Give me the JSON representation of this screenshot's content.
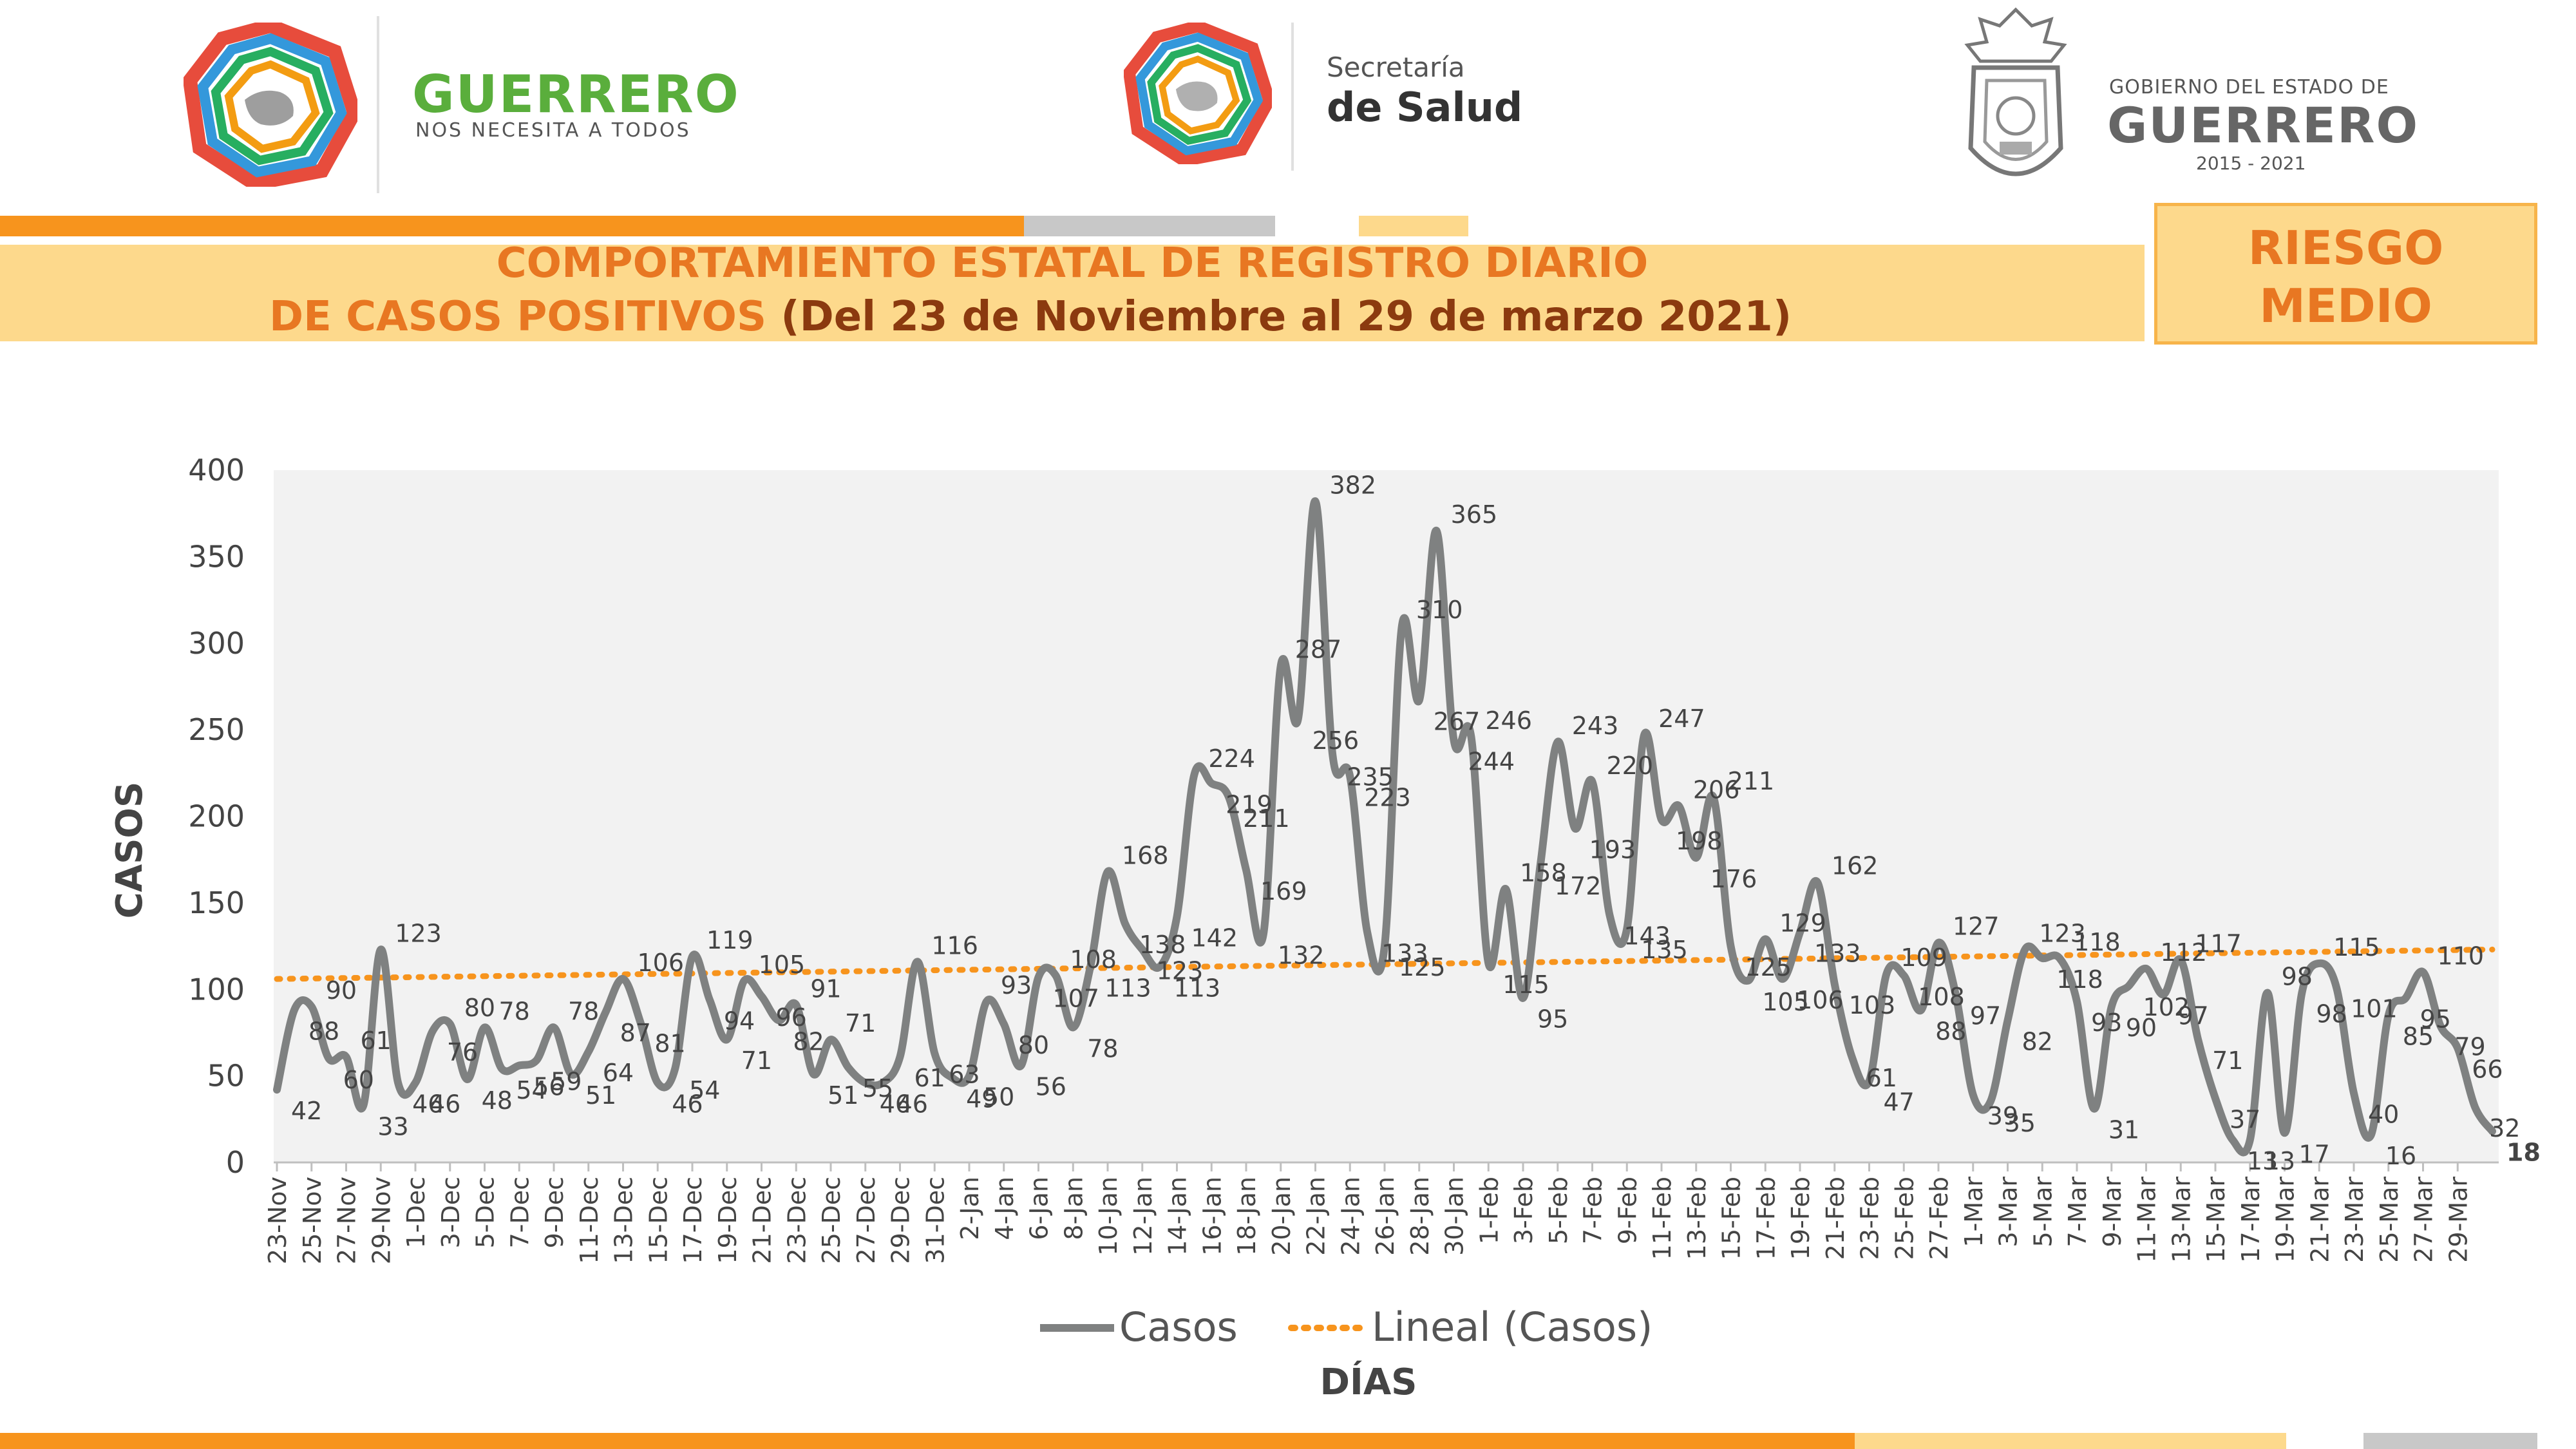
{
  "header": {
    "logo1": {
      "name": "GUERRERO",
      "tagline": "NOS NECESITA A TODOS"
    },
    "logo2": {
      "line1": "Secretaría",
      "line2": "de Salud"
    },
    "logo3": {
      "line1": "GOBIERNO DEL ESTADO DE",
      "line2": "GUERRERO",
      "line3": "2015 - 2021"
    }
  },
  "title": {
    "line1": "COMPORTAMIENTO ESTATAL DE REGISTRO DIARIO",
    "line2_main": "DE CASOS POSITIVOS",
    "line2_sub": " (Del 23 de Noviembre al 29 de marzo 2021)"
  },
  "risk": {
    "line1": "RIESGO",
    "line2": "MEDIO"
  },
  "colors": {
    "orange": "#F7941D",
    "title_orange": "#E87722",
    "title_brown": "#8B3A0F",
    "light_yellow": "#FDD98C",
    "gray": "#C8C8C8",
    "line_gray": "#7F8181",
    "plot_bg": "#F2F2F2"
  },
  "chart_data": {
    "type": "line",
    "title": "",
    "xlabel": "DÍAS",
    "ylabel": "CASOS",
    "ylim": [
      0,
      400
    ],
    "yticks": [
      0,
      50,
      100,
      150,
      200,
      250,
      300,
      350,
      400
    ],
    "start_date": "2020-11-23",
    "x_tick_labels": [
      "23-Nov",
      "25-Nov",
      "27-Nov",
      "29-Nov",
      "1-Dec",
      "3-Dec",
      "5-Dec",
      "7-Dec",
      "9-Dec",
      "11-Dec",
      "13-Dec",
      "15-Dec",
      "17-Dec",
      "19-Dec",
      "21-Dec",
      "23-Dec",
      "25-Dec",
      "27-Dec",
      "29-Dec",
      "31-Dec",
      "2-Jan",
      "4-Jan",
      "6-Jan",
      "8-Jan",
      "10-Jan",
      "12-Jan",
      "14-Jan",
      "16-Jan",
      "18-Jan",
      "20-Jan",
      "22-Jan",
      "24-Jan",
      "26-Jan",
      "28-Jan",
      "30-Jan",
      "1-Feb",
      "3-Feb",
      "5-Feb",
      "7-Feb",
      "9-Feb",
      "11-Feb",
      "13-Feb",
      "15-Feb",
      "17-Feb",
      "19-Feb",
      "21-Feb",
      "23-Feb",
      "25-Feb",
      "27-Feb",
      "1-Mar",
      "3-Mar",
      "5-Mar",
      "7-Mar",
      "9-Mar",
      "11-Mar",
      "13-Mar",
      "15-Mar",
      "17-Mar",
      "19-Mar",
      "21-Mar",
      "23-Mar",
      "25-Mar",
      "27-Mar",
      "29-Mar"
    ],
    "series": [
      {
        "name": "Casos",
        "values": [
          42,
          88,
          90,
          60,
          61,
          33,
          123,
          46,
          46,
          76,
          80,
          48,
          78,
          54,
          56,
          59,
          78,
          51,
          64,
          87,
          106,
          81,
          46,
          54,
          119,
          94,
          71,
          105,
          96,
          82,
          91,
          51,
          71,
          55,
          46,
          46,
          61,
          116,
          63,
          49,
          50,
          93,
          80,
          56,
          107,
          108,
          78,
          113,
          168,
          138,
          123,
          113,
          142,
          224,
          219,
          211,
          169,
          132,
          287,
          256,
          382,
          235,
          223,
          133,
          125,
          310,
          267,
          365,
          244,
          246,
          115,
          158,
          95,
          172,
          243,
          193,
          220,
          143,
          135,
          247,
          198,
          206,
          176,
          211,
          125,
          105,
          129,
          106,
          133,
          162,
          103,
          61,
          47,
          109,
          108,
          88,
          127,
          97,
          39,
          35,
          82,
          123,
          118,
          118,
          93,
          31,
          90,
          102,
          112,
          97,
          117,
          71,
          37,
          13,
          13,
          98,
          17,
          98,
          115,
          101,
          40,
          16,
          85,
          95,
          110,
          79,
          66,
          32,
          18
        ],
        "data_labels": [
          42,
          88,
          90,
          60,
          61,
          33,
          123,
          46,
          46,
          76,
          80,
          48,
          78,
          54,
          56,
          59,
          78,
          51,
          64,
          87,
          106,
          81,
          46,
          54,
          119,
          94,
          71,
          105,
          96,
          82,
          91,
          51,
          71,
          55,
          46,
          46,
          61,
          116,
          63,
          49,
          50,
          93,
          80,
          56,
          107,
          108,
          78,
          113,
          168,
          138,
          123,
          113,
          142,
          224,
          219,
          211,
          169,
          132,
          287,
          256,
          382,
          235,
          223,
          133,
          125,
          310,
          267,
          365,
          244,
          246,
          115,
          158,
          95,
          172,
          243,
          193,
          220,
          143,
          135,
          247,
          198,
          206,
          176,
          211,
          125,
          105,
          129,
          106,
          133,
          162,
          103,
          61,
          47,
          109,
          108,
          88,
          127,
          97,
          39,
          35,
          82,
          123,
          118,
          118,
          93,
          31,
          90,
          102,
          112,
          97,
          117,
          71,
          37,
          13,
          13,
          98,
          17,
          98,
          115,
          101,
          40,
          16,
          85,
          95,
          110,
          79,
          66,
          32,
          18
        ],
        "color": "#7F8181"
      },
      {
        "name": "Lineal (Casos)",
        "trend": {
          "start": 106,
          "end": 123
        },
        "color": "#F7941D"
      }
    ],
    "legend": "bottom",
    "legend_labels": [
      "Casos",
      "Lineal (Casos)"
    ],
    "grid": false
  }
}
